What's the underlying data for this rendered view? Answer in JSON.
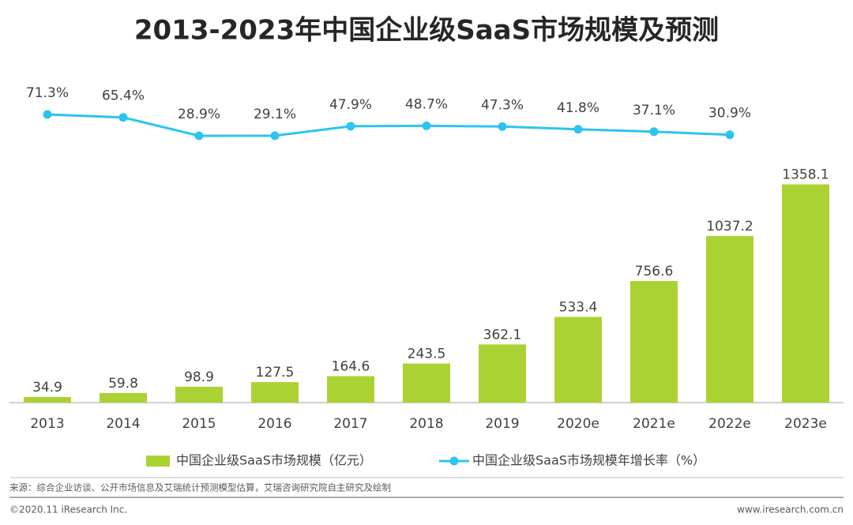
{
  "chart_data": {
    "type": "bar",
    "title": "2013-2023年中国企业级SaaS市场规模及预测",
    "categories": [
      "2013",
      "2014",
      "2015",
      "2016",
      "2017",
      "2018",
      "2019",
      "2020e",
      "2021e",
      "2022e",
      "2023e"
    ],
    "series": [
      {
        "name": "中国企业级SaaS市场规模（亿元）",
        "type": "bar",
        "color": "#abd233",
        "values": [
          34.9,
          59.8,
          98.9,
          127.5,
          164.6,
          243.5,
          362.1,
          533.4,
          756.6,
          1037.2,
          1358.1
        ]
      },
      {
        "name": "中国企业级SaaS市场规模年增长率（%）",
        "type": "line",
        "axis": "y2",
        "color": "#2cc4ee",
        "values": [
          71.3,
          65.4,
          28.9,
          29.1,
          47.9,
          48.7,
          47.3,
          41.8,
          37.1,
          30.9,
          null
        ],
        "value_labels": [
          "71.3%",
          "65.4%",
          "28.9%",
          "29.1%",
          "47.9%",
          "48.7%",
          "47.3%",
          "41.8%",
          "37.1%",
          "30.9%",
          null
        ]
      }
    ],
    "ylim": [
      0,
      1400
    ],
    "y2lim": [
      0,
      100
    ],
    "legend": "bottom",
    "source": "来源：综合企业访谈、公开市场信息及艾瑞统计预测模型估算，艾瑞咨询研究院自主研究及绘制",
    "copyright": "©2020.11 iResearch Inc.",
    "website": "www.iresearch.com.cn"
  }
}
